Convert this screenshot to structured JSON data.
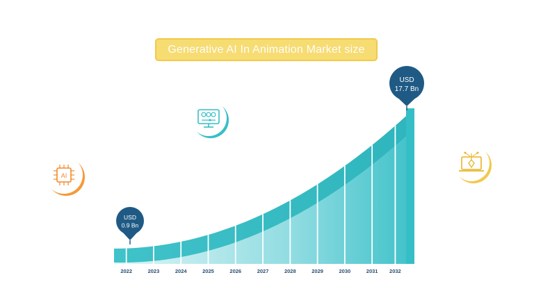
{
  "chart_data": {
    "type": "area",
    "title": "Generative AI In Animation Market size",
    "categories": [
      "2022",
      "2023",
      "2024",
      "2025",
      "2026",
      "2027",
      "2028",
      "2029",
      "2030",
      "2031",
      "2032"
    ],
    "start_value": 0.9,
    "end_value": 17.7,
    "unit": "USD Bn",
    "callouts": [
      {
        "year": "2022",
        "line1": "USD",
        "line2": "0.9 Bn"
      },
      {
        "year": "2032",
        "line1": "USD",
        "line2": "17.7 Bn"
      }
    ],
    "ylim": [
      0,
      20
    ]
  },
  "colors": {
    "accent": "#36bec6",
    "dark_band": "#2eb3bb",
    "callout": "#1f5a85",
    "title_bg": "#f7dc72",
    "title_border": "#f1c94b",
    "tick_label": "#2b4f74"
  },
  "icons": [
    "ai-chip-icon",
    "monitor-settings-icon",
    "laptop-pen-icon"
  ]
}
